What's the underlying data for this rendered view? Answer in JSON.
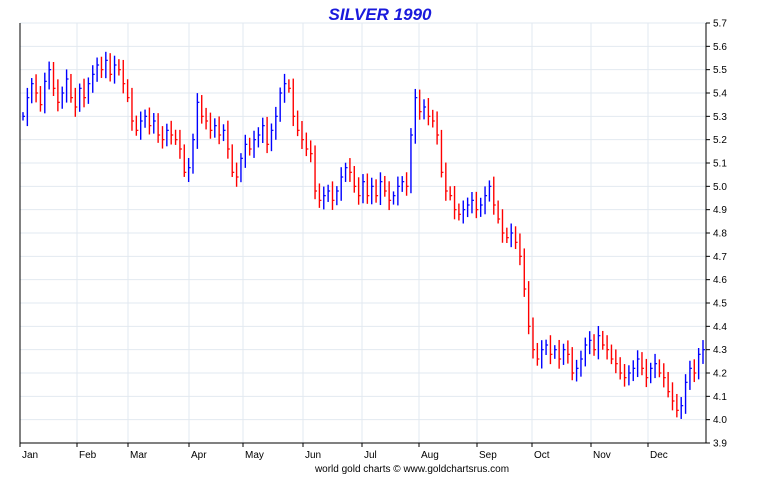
{
  "chart_data": {
    "type": "bar",
    "title": "SILVER 1990",
    "credit": "world gold charts © www.goldchartsrus.com",
    "ylim": [
      3.9,
      5.7
    ],
    "y_ticks": [
      "3.9",
      "4.0",
      "4.1",
      "4.2",
      "4.3",
      "4.4",
      "4.5",
      "4.6",
      "4.7",
      "4.8",
      "4.9",
      "5.0",
      "5.1",
      "5.2",
      "5.3",
      "5.4",
      "5.5",
      "5.6",
      "5.7"
    ],
    "x_ticks": [
      "Jan",
      "Feb",
      "Mar",
      "Apr",
      "May",
      "Jun",
      "Jul",
      "Aug",
      "Sep",
      "Oct",
      "Nov",
      "Dec"
    ],
    "grid": true,
    "up_color": "#0000ff",
    "down_color": "#ff0000",
    "title_color": "#1a1adc",
    "series": [
      {
        "values": [
          5.3,
          5.38,
          5.44,
          5.4,
          5.35,
          5.45,
          5.5,
          5.42,
          5.36,
          5.4,
          5.46,
          5.38,
          5.34,
          5.42,
          5.38,
          5.44,
          5.48,
          5.52,
          5.5,
          5.54,
          5.48,
          5.52,
          5.5,
          5.44,
          5.38,
          5.28,
          5.24,
          5.28,
          5.3,
          5.26,
          5.28,
          5.22,
          5.2,
          5.24,
          5.22,
          5.2,
          5.16,
          5.06,
          5.08,
          5.2,
          5.36,
          5.3,
          5.28,
          5.24,
          5.26,
          5.22,
          5.24,
          5.16,
          5.06,
          5.04,
          5.12,
          5.18,
          5.16,
          5.2,
          5.22,
          5.26,
          5.18,
          5.24,
          5.3,
          5.4,
          5.44,
          5.42,
          5.3,
          5.24,
          5.2,
          5.16,
          5.14,
          4.98,
          4.94,
          4.96,
          4.98,
          4.94,
          4.98,
          5.04,
          5.08,
          5.06,
          5.0,
          4.96,
          5.02,
          4.96,
          5.0,
          4.96,
          5.02,
          4.98,
          4.94,
          4.96,
          5.0,
          5.02,
          5.0,
          5.22,
          5.38,
          5.32,
          5.34,
          5.3,
          5.28,
          5.22,
          5.06,
          4.98,
          4.96,
          4.9,
          4.88,
          4.9,
          4.92,
          4.94,
          4.9,
          4.92,
          4.96,
          5.0,
          4.92,
          4.86,
          4.8,
          4.78,
          4.8,
          4.76,
          4.7,
          4.56,
          4.4,
          4.3,
          4.26,
          4.3,
          4.32,
          4.28,
          4.3,
          4.26,
          4.3,
          4.28,
          4.2,
          4.22,
          4.26,
          4.32,
          4.34,
          4.3,
          4.36,
          4.32,
          4.3,
          4.26,
          4.24,
          4.2,
          4.18,
          4.2,
          4.22,
          4.26,
          4.22,
          4.18,
          4.22,
          4.24,
          4.2,
          4.18,
          4.12,
          4.08,
          4.04,
          4.06,
          4.16,
          4.22,
          4.2,
          4.28,
          4.3
        ]
      }
    ]
  }
}
